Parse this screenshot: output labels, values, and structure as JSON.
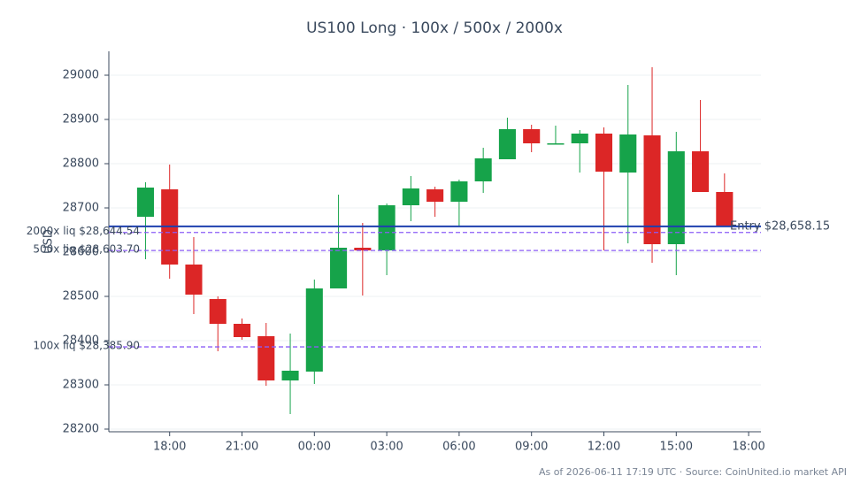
{
  "chart_data": {
    "type": "candlestick",
    "title": "US100 Long · 100x / 500x / 2000x",
    "ylabel": "USD",
    "footnote": "As of 2026-06-11 17:19 UTC · Source: CoinUnited.io market API",
    "x": [
      17,
      18,
      19,
      20,
      21,
      22,
      23,
      24,
      25,
      26,
      27,
      28,
      29,
      30,
      31,
      32,
      33,
      34,
      35,
      36,
      37,
      38,
      39,
      40,
      41
    ],
    "open": [
      28680,
      28742,
      28572,
      28494,
      28438,
      28410,
      28310,
      28330,
      28518,
      28610,
      28604,
      28706,
      28742,
      28714,
      28760,
      28810,
      28878,
      28844,
      28846,
      28868,
      28780,
      28864,
      28618,
      28828,
      28736
    ],
    "high": [
      28758,
      28798,
      28634,
      28500,
      28450,
      28440,
      28416,
      28538,
      28730,
      28666,
      28710,
      28772,
      28748,
      28764,
      28836,
      28904,
      28888,
      28886,
      28876,
      28882,
      28978,
      29018,
      28872,
      28944,
      28778
    ],
    "low": [
      28584,
      28540,
      28460,
      28376,
      28402,
      28298,
      28234,
      28302,
      28518,
      28502,
      28548,
      28670,
      28680,
      28658,
      28734,
      28810,
      28826,
      28844,
      28780,
      28604,
      28620,
      28576,
      28548,
      28736,
      28660
    ],
    "close": [
      28746,
      28572,
      28504,
      28438,
      28408,
      28310,
      28332,
      28518,
      28610,
      28604,
      28706,
      28744,
      28714,
      28760,
      28812,
      28878,
      28846,
      28846,
      28868,
      28782,
      28866,
      28618,
      28828,
      28736,
      28660
    ],
    "up_color": "#16a34a",
    "down_color": "#dc2626",
    "levels": [
      {
        "label": "Entry $28,658.15",
        "value": 28658.15,
        "color": "#1e40af",
        "style": "solid"
      },
      {
        "label": "2000x liq $28,644.54",
        "value": 28644.54,
        "color": "#8b5cf6",
        "style": "dashed"
      },
      {
        "label": "500x liq $28,603.70",
        "value": 28603.7,
        "color": "#8b5cf6",
        "style": "dashed"
      },
      {
        "label": "100x liq $28,385.90",
        "value": 28385.9,
        "color": "#8b5cf6",
        "style": "dashed"
      }
    ],
    "xlim": [
      15.48,
      42.51
    ],
    "xticks": [
      {
        "value": 18,
        "label": "18:00"
      },
      {
        "value": 21,
        "label": "21:00"
      },
      {
        "value": 24,
        "label": "00:00"
      },
      {
        "value": 27,
        "label": "03:00"
      },
      {
        "value": 30,
        "label": "06:00"
      },
      {
        "value": 33,
        "label": "09:00"
      },
      {
        "value": 36,
        "label": "12:00"
      },
      {
        "value": 39,
        "label": "15:00"
      },
      {
        "value": 42,
        "label": "18:00"
      }
    ],
    "ylim": [
      28194,
      29054
    ],
    "yticks": [
      28200,
      28300,
      28400,
      28500,
      28600,
      28700,
      28800,
      28900,
      29000
    ],
    "grid": true
  }
}
